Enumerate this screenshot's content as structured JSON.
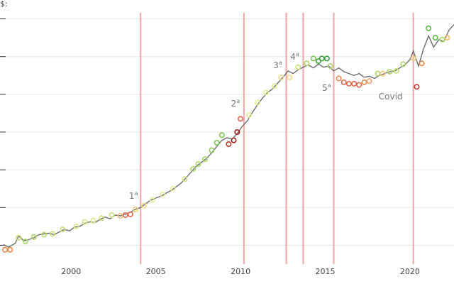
{
  "chart_data": {
    "type": "line",
    "ylabel": "$:",
    "xlim": [
      1995.8,
      2022.6
    ],
    "ylim": [
      -0.5,
      6.5
    ],
    "x_ticks": [
      2000,
      2005,
      2010,
      2015,
      2020
    ],
    "y_gridlines": [
      0,
      1,
      2,
      3,
      4,
      5,
      6
    ],
    "grid": true,
    "events": [
      {
        "x": 2004.1,
        "label": "1",
        "sup": "a"
      },
      {
        "x": 2010.2,
        "label": "2",
        "sup": "a"
      },
      {
        "x": 2012.7,
        "label": "3",
        "sup": "a"
      },
      {
        "x": 2013.7,
        "label": "4",
        "sup": "a"
      },
      {
        "x": 2015.5,
        "label": "5",
        "sup": "a"
      },
      {
        "x": 2020.2,
        "label": "Covid",
        "sup": ""
      }
    ],
    "series": [
      {
        "values": [
          [
            1996.0,
            0.02
          ],
          [
            1996.3,
            -0.05
          ],
          [
            1996.7,
            0.05
          ],
          [
            1996.9,
            0.25
          ],
          [
            1997.2,
            0.12
          ],
          [
            1997.5,
            0.15
          ],
          [
            1997.8,
            0.2
          ],
          [
            1998.1,
            0.28
          ],
          [
            1998.4,
            0.3
          ],
          [
            1998.7,
            0.32
          ],
          [
            1999.0,
            0.28
          ],
          [
            1999.3,
            0.35
          ],
          [
            1999.6,
            0.42
          ],
          [
            1999.9,
            0.38
          ],
          [
            2000.2,
            0.48
          ],
          [
            2000.5,
            0.5
          ],
          [
            2000.8,
            0.58
          ],
          [
            2001.1,
            0.62
          ],
          [
            2001.4,
            0.6
          ],
          [
            2001.7,
            0.68
          ],
          [
            2002.0,
            0.75
          ],
          [
            2002.3,
            0.7
          ],
          [
            2002.6,
            0.8
          ],
          [
            2002.9,
            0.78
          ],
          [
            2003.2,
            0.82
          ],
          [
            2003.5,
            0.88
          ],
          [
            2003.8,
            0.95
          ],
          [
            2004.1,
            1.0
          ],
          [
            2004.4,
            1.1
          ],
          [
            2004.7,
            1.2
          ],
          [
            2005.0,
            1.25
          ],
          [
            2005.3,
            1.3
          ],
          [
            2005.6,
            1.38
          ],
          [
            2005.9,
            1.45
          ],
          [
            2006.2,
            1.55
          ],
          [
            2006.5,
            1.65
          ],
          [
            2006.8,
            1.8
          ],
          [
            2007.1,
            1.95
          ],
          [
            2007.4,
            2.1
          ],
          [
            2007.7,
            2.2
          ],
          [
            2008.0,
            2.3
          ],
          [
            2008.3,
            2.45
          ],
          [
            2008.6,
            2.62
          ],
          [
            2008.9,
            2.78
          ],
          [
            2009.2,
            2.85
          ],
          [
            2009.5,
            2.82
          ],
          [
            2009.8,
            2.95
          ],
          [
            2010.1,
            3.15
          ],
          [
            2010.4,
            3.3
          ],
          [
            2010.7,
            3.52
          ],
          [
            2011.0,
            3.72
          ],
          [
            2011.3,
            3.9
          ],
          [
            2011.6,
            4.05
          ],
          [
            2011.9,
            4.15
          ],
          [
            2012.2,
            4.3
          ],
          [
            2012.5,
            4.45
          ],
          [
            2012.8,
            4.62
          ],
          [
            2013.1,
            4.55
          ],
          [
            2013.4,
            4.65
          ],
          [
            2013.7,
            4.72
          ],
          [
            2014.0,
            4.78
          ],
          [
            2014.3,
            4.7
          ],
          [
            2014.6,
            4.8
          ],
          [
            2014.9,
            4.72
          ],
          [
            2015.2,
            4.75
          ],
          [
            2015.5,
            4.62
          ],
          [
            2015.8,
            4.7
          ],
          [
            2016.1,
            4.6
          ],
          [
            2016.4,
            4.55
          ],
          [
            2016.7,
            4.5
          ],
          [
            2017.0,
            4.55
          ],
          [
            2017.3,
            4.45
          ],
          [
            2017.6,
            4.48
          ],
          [
            2017.9,
            4.42
          ],
          [
            2018.2,
            4.5
          ],
          [
            2018.5,
            4.55
          ],
          [
            2018.8,
            4.6
          ],
          [
            2019.1,
            4.62
          ],
          [
            2019.4,
            4.7
          ],
          [
            2019.7,
            4.78
          ],
          [
            2020.0,
            4.92
          ],
          [
            2020.2,
            5.15
          ],
          [
            2020.5,
            4.75
          ],
          [
            2020.8,
            5.2
          ],
          [
            2021.1,
            5.55
          ],
          [
            2021.4,
            5.25
          ],
          [
            2021.7,
            5.45
          ],
          [
            2022.0,
            5.4
          ],
          [
            2022.3,
            5.7
          ],
          [
            2022.6,
            5.85
          ]
        ]
      }
    ],
    "points": [
      {
        "x": 1996.1,
        "y": -0.12,
        "c": "#e8874a"
      },
      {
        "x": 1996.4,
        "y": -0.12,
        "c": "#e8874a"
      },
      {
        "x": 1996.9,
        "y": 0.2,
        "c": "#c8e27a"
      },
      {
        "x": 1997.3,
        "y": 0.1,
        "c": "#a8d868"
      },
      {
        "x": 1997.8,
        "y": 0.22,
        "c": "#a8d868"
      },
      {
        "x": 1998.4,
        "y": 0.28,
        "c": "#b8dd70"
      },
      {
        "x": 1998.9,
        "y": 0.3,
        "c": "#c8e27a"
      },
      {
        "x": 1999.5,
        "y": 0.42,
        "c": "#c8e27a"
      },
      {
        "x": 2000.3,
        "y": 0.5,
        "c": "#d8e884"
      },
      {
        "x": 2000.8,
        "y": 0.62,
        "c": "#d8e884"
      },
      {
        "x": 2001.3,
        "y": 0.65,
        "c": "#d8e884"
      },
      {
        "x": 2001.8,
        "y": 0.72,
        "c": "#c8e27a"
      },
      {
        "x": 2002.4,
        "y": 0.8,
        "c": "#c8e27a"
      },
      {
        "x": 2002.9,
        "y": 0.78,
        "c": "#f5c77a"
      },
      {
        "x": 2003.2,
        "y": 0.8,
        "c": "#e0684a"
      },
      {
        "x": 2003.5,
        "y": 0.82,
        "c": "#e0684a"
      },
      {
        "x": 2003.8,
        "y": 0.95,
        "c": "#f5d07a"
      },
      {
        "x": 2004.3,
        "y": 1.05,
        "c": "#f5d98a"
      },
      {
        "x": 2004.8,
        "y": 1.2,
        "c": "#e8ec92"
      },
      {
        "x": 2005.4,
        "y": 1.35,
        "c": "#e8ec92"
      },
      {
        "x": 2006.0,
        "y": 1.5,
        "c": "#e8ec92"
      },
      {
        "x": 2006.7,
        "y": 1.75,
        "c": "#d0e488"
      },
      {
        "x": 2007.2,
        "y": 2.02,
        "c": "#a8d868"
      },
      {
        "x": 2007.5,
        "y": 2.15,
        "c": "#a8d868"
      },
      {
        "x": 2007.9,
        "y": 2.28,
        "c": "#a8d868"
      },
      {
        "x": 2008.3,
        "y": 2.52,
        "c": "#8ccd58"
      },
      {
        "x": 2008.6,
        "y": 2.72,
        "c": "#7fc64e"
      },
      {
        "x": 2008.9,
        "y": 2.92,
        "c": "#7fc64e"
      },
      {
        "x": 2009.3,
        "y": 2.68,
        "c": "#c0392b"
      },
      {
        "x": 2009.6,
        "y": 2.78,
        "c": "#a01f1f"
      },
      {
        "x": 2009.8,
        "y": 3.0,
        "c": "#a01f1f"
      },
      {
        "x": 2010.0,
        "y": 3.35,
        "c": "#e0684a"
      },
      {
        "x": 2010.5,
        "y": 3.45,
        "c": "#e8ec92"
      },
      {
        "x": 2011.0,
        "y": 3.78,
        "c": "#e8ec92"
      },
      {
        "x": 2011.5,
        "y": 4.05,
        "c": "#e8ec92"
      },
      {
        "x": 2012.0,
        "y": 4.22,
        "c": "#e8ec92"
      },
      {
        "x": 2012.4,
        "y": 4.45,
        "c": "#f5d98a"
      },
      {
        "x": 2012.9,
        "y": 4.45,
        "c": "#f5d98a"
      },
      {
        "x": 2013.4,
        "y": 4.72,
        "c": "#c8e27a"
      },
      {
        "x": 2013.9,
        "y": 4.82,
        "c": "#a8d868"
      },
      {
        "x": 2014.3,
        "y": 4.95,
        "c": "#7fc64e"
      },
      {
        "x": 2014.6,
        "y": 4.88,
        "c": "#3a9e3a"
      },
      {
        "x": 2014.8,
        "y": 4.95,
        "c": "#3a9e3a"
      },
      {
        "x": 2015.1,
        "y": 4.95,
        "c": "#3a9e3a"
      },
      {
        "x": 2015.3,
        "y": 4.75,
        "c": "#a8d868"
      },
      {
        "x": 2015.8,
        "y": 4.42,
        "c": "#e8874a"
      },
      {
        "x": 2016.1,
        "y": 4.32,
        "c": "#e0684a"
      },
      {
        "x": 2016.4,
        "y": 4.28,
        "c": "#e0684a"
      },
      {
        "x": 2016.7,
        "y": 4.28,
        "c": "#e0684a"
      },
      {
        "x": 2017.0,
        "y": 4.25,
        "c": "#e0684a"
      },
      {
        "x": 2017.3,
        "y": 4.32,
        "c": "#e8874a"
      },
      {
        "x": 2017.6,
        "y": 4.35,
        "c": "#f5a06a"
      },
      {
        "x": 2018.1,
        "y": 4.55,
        "c": "#a8d868"
      },
      {
        "x": 2018.4,
        "y": 4.55,
        "c": "#f5c77a"
      },
      {
        "x": 2018.8,
        "y": 4.6,
        "c": "#a8d868"
      },
      {
        "x": 2019.2,
        "y": 4.62,
        "c": "#c8e27a"
      },
      {
        "x": 2019.6,
        "y": 4.8,
        "c": "#a8d868"
      },
      {
        "x": 2020.2,
        "y": 4.95,
        "c": "#f5c77a"
      },
      {
        "x": 2020.4,
        "y": 4.2,
        "c": "#c0392b"
      },
      {
        "x": 2020.7,
        "y": 4.82,
        "c": "#e8874a"
      },
      {
        "x": 2021.1,
        "y": 5.75,
        "c": "#5db84a"
      },
      {
        "x": 2021.5,
        "y": 5.5,
        "c": "#5db84a"
      },
      {
        "x": 2021.9,
        "y": 5.45,
        "c": "#a8d868"
      },
      {
        "x": 2022.2,
        "y": 5.5,
        "c": "#f5b86a"
      }
    ]
  }
}
